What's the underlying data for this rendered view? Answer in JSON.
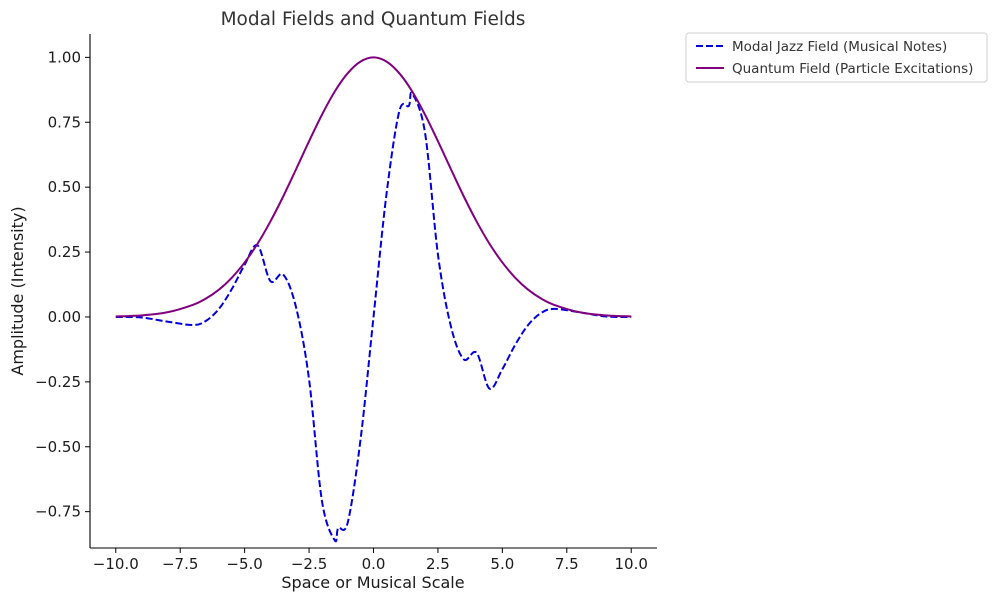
{
  "chart_data": {
    "type": "line",
    "title": "Modal Fields and Quantum Fields",
    "xlabel": "Space or Musical Scale",
    "ylabel": "Amplitude (Intensity)",
    "xlim": [
      -11.0,
      11.0
    ],
    "ylim": [
      -0.89,
      1.09
    ],
    "x_ticks": [
      -10.0,
      -7.5,
      -5.0,
      -2.5,
      0.0,
      2.5,
      5.0,
      7.5,
      10.0
    ],
    "x_tick_labels": [
      "−10.0",
      "−7.5",
      "−5.0",
      "−2.5",
      "0.0",
      "2.5",
      "5.0",
      "7.5",
      "10.0"
    ],
    "y_ticks": [
      -0.75,
      -0.5,
      -0.25,
      0.0,
      0.25,
      0.5,
      0.75,
      1.0
    ],
    "y_tick_labels": [
      "−0.75",
      "−0.50",
      "−0.25",
      "0.00",
      "0.25",
      "0.50",
      "0.75",
      "1.00"
    ],
    "grid": false,
    "legend_position": "outside-top-right",
    "series": [
      {
        "name": "Modal Jazz Field (Musical Notes)",
        "color": "#0000dd",
        "line_style": "dashed",
        "x": [
          -10.0,
          -9.0,
          -8.0,
          -7.0,
          -6.5,
          -6.0,
          -5.5,
          -5.0,
          -4.5,
          -4.0,
          -3.5,
          -3.0,
          -2.5,
          -2.0,
          -1.5,
          -1.37,
          -1.0,
          -0.5,
          0.0,
          0.5,
          1.0,
          1.37,
          1.5,
          2.0,
          2.5,
          3.0,
          3.5,
          4.0,
          4.5,
          5.0,
          5.5,
          6.0,
          6.5,
          7.0,
          8.0,
          9.0,
          10.0
        ],
        "y": [
          0.0,
          -0.002,
          -0.018,
          -0.031,
          -0.015,
          0.031,
          0.107,
          0.201,
          0.276,
          0.138,
          0.163,
          0.035,
          -0.241,
          -0.709,
          -0.861,
          -0.813,
          -0.792,
          -0.47,
          0.0,
          0.47,
          0.792,
          0.813,
          0.861,
          0.709,
          0.241,
          -0.035,
          -0.163,
          -0.138,
          -0.276,
          -0.201,
          -0.107,
          -0.031,
          0.015,
          0.031,
          0.018,
          0.002,
          0.0
        ]
      },
      {
        "name": "Quantum Field (Particle Excitations)",
        "color": "#800080",
        "line_style": "solid",
        "x": [
          -10.0,
          -9.0,
          -8.0,
          -7.0,
          -6.5,
          -6.0,
          -5.5,
          -5.0,
          -4.5,
          -4.0,
          -3.5,
          -3.0,
          -2.5,
          -2.0,
          -1.5,
          -1.0,
          -0.5,
          0.0,
          0.5,
          1.0,
          1.5,
          2.0,
          2.5,
          3.0,
          3.5,
          4.0,
          4.5,
          5.0,
          5.5,
          6.0,
          6.5,
          7.0,
          8.0,
          9.0,
          10.0
        ],
        "y": [
          0.002,
          0.006,
          0.018,
          0.047,
          0.071,
          0.105,
          0.151,
          0.21,
          0.282,
          0.368,
          0.465,
          0.57,
          0.677,
          0.779,
          0.869,
          0.939,
          0.984,
          1.0,
          0.984,
          0.939,
          0.869,
          0.779,
          0.677,
          0.57,
          0.465,
          0.368,
          0.282,
          0.21,
          0.151,
          0.105,
          0.071,
          0.047,
          0.018,
          0.006,
          0.002
        ]
      }
    ]
  }
}
